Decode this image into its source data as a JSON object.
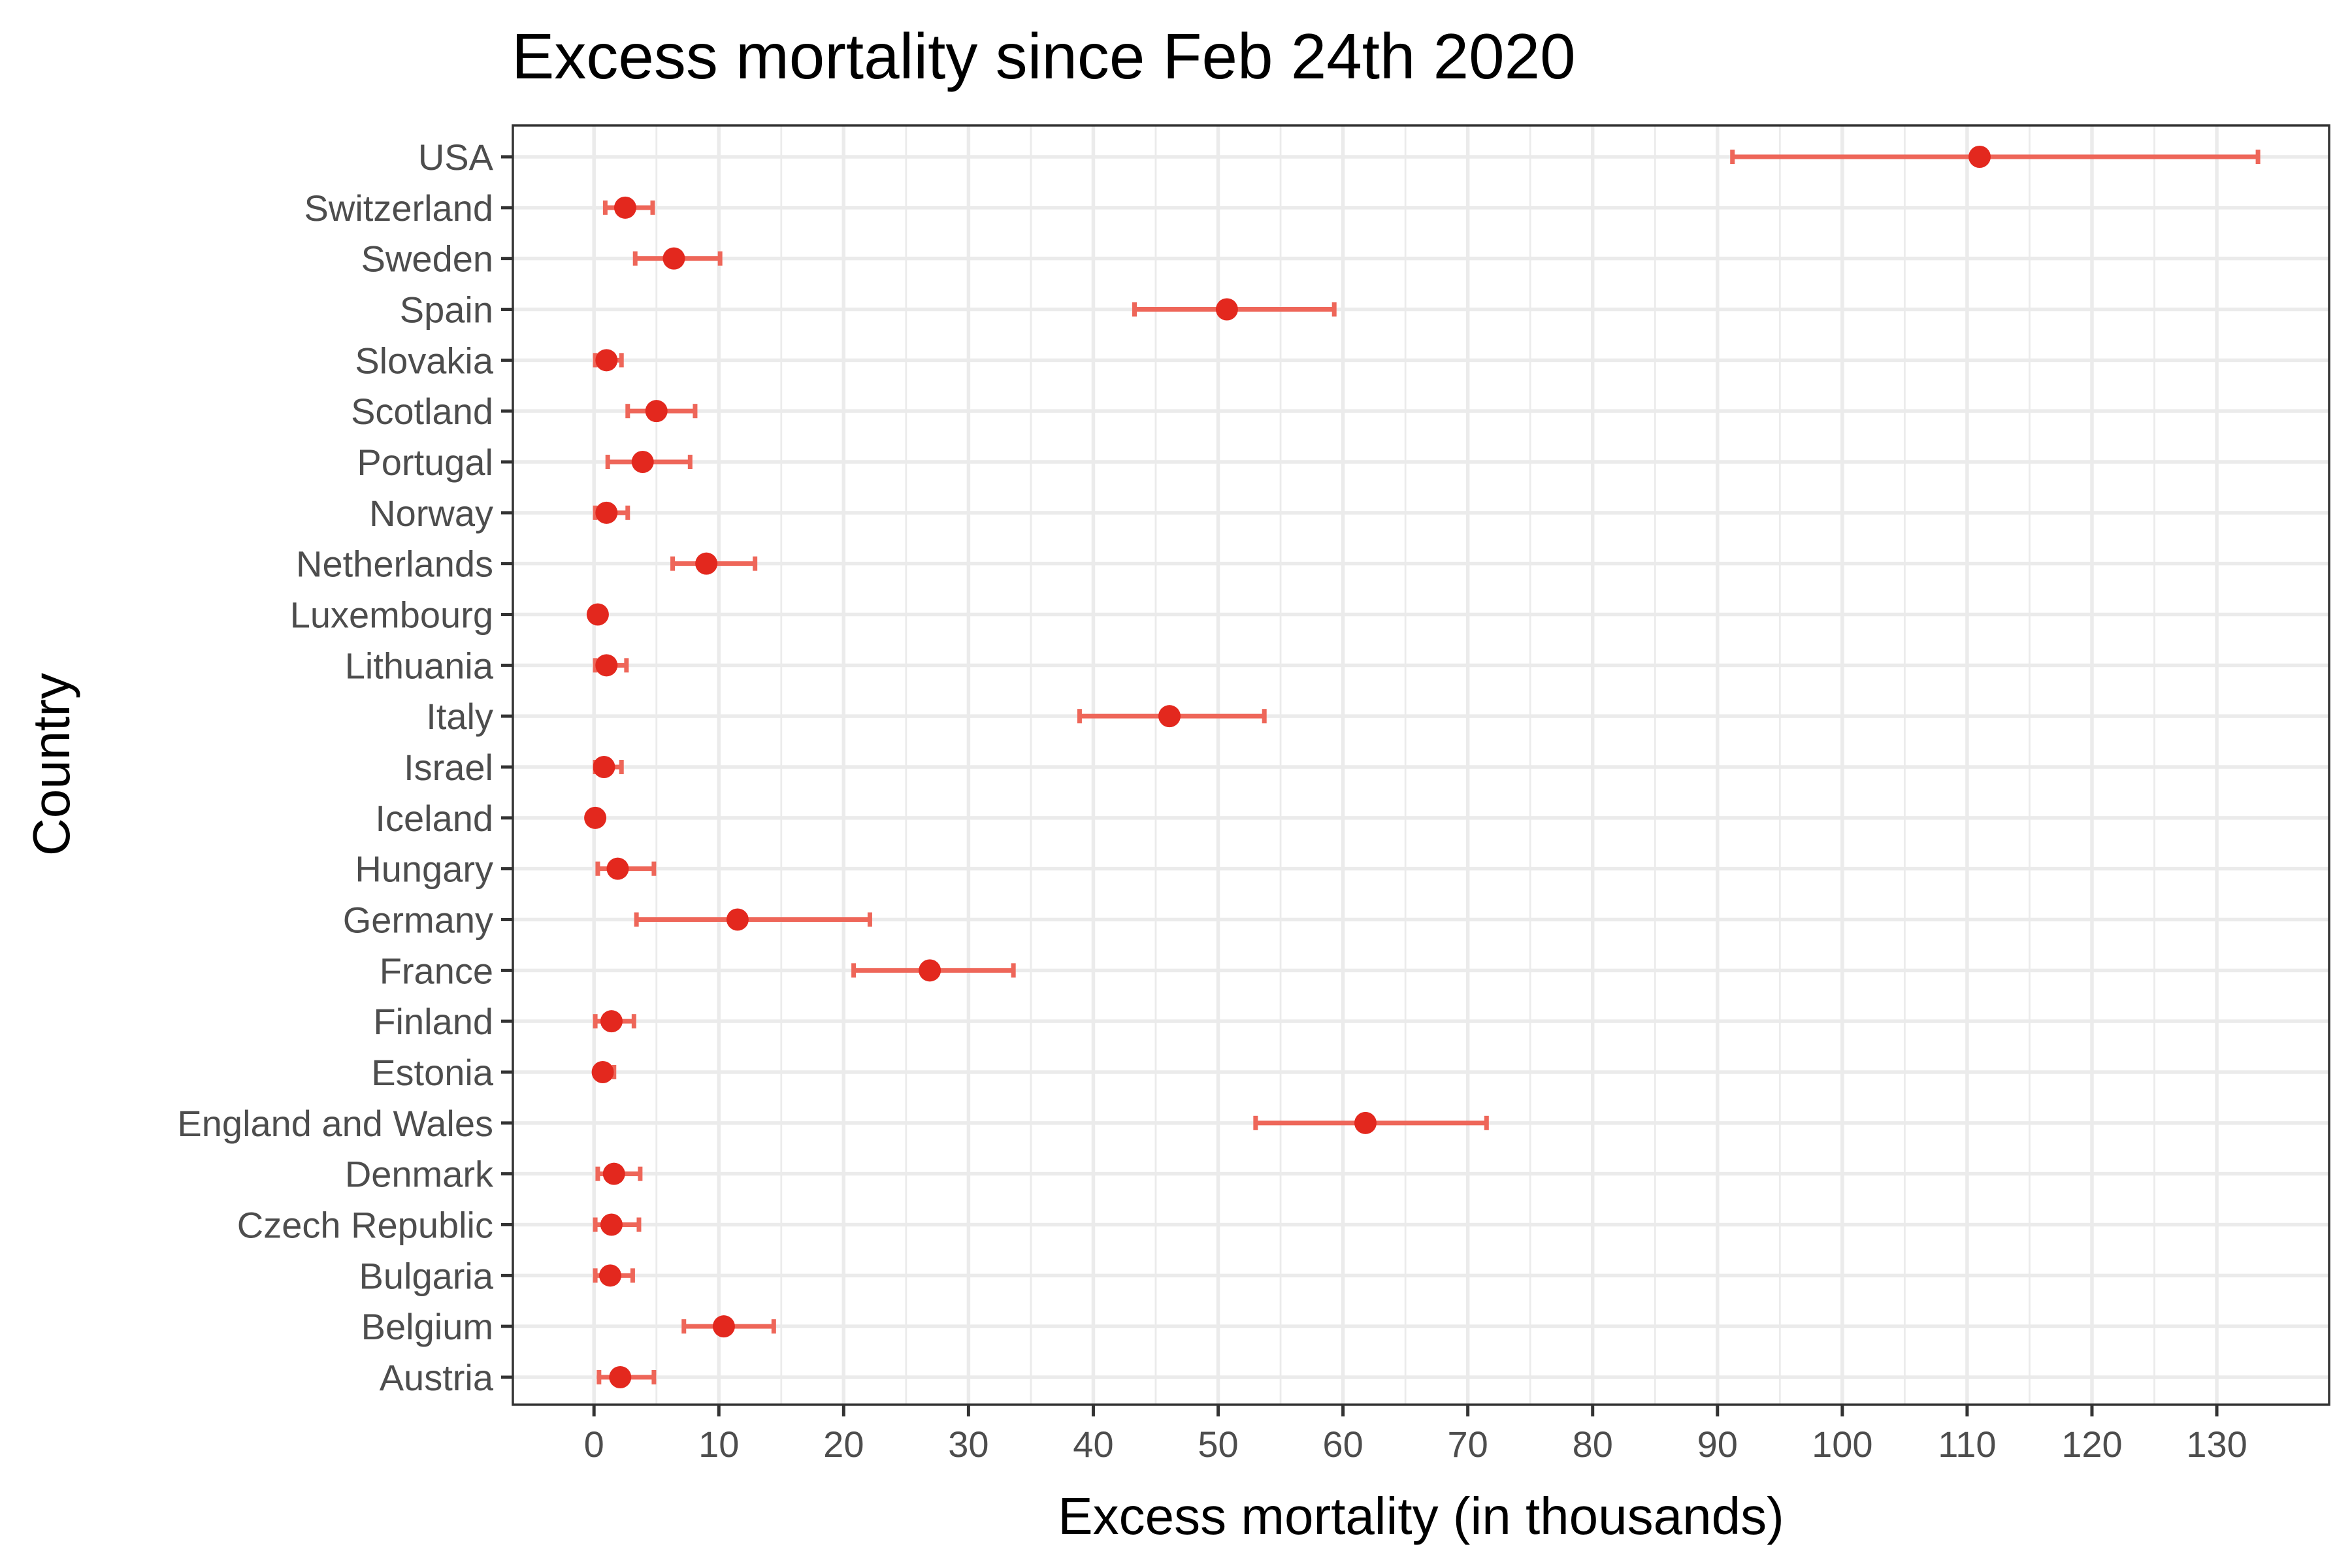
{
  "chart_data": {
    "type": "errorbar",
    "orientation": "horizontal",
    "title": "Excess mortality since Feb 24th 2020",
    "xlabel": "Excess mortality (in thousands)",
    "ylabel": "Country",
    "xlim": [
      -6.5,
      139
    ],
    "xticks": [
      0,
      10,
      20,
      30,
      40,
      50,
      60,
      70,
      80,
      90,
      100,
      110,
      120,
      130
    ],
    "grid": true,
    "point_color": "#e3281e",
    "bar_color": "#ee6659",
    "categories": [
      "USA",
      "Switzerland",
      "Sweden",
      "Spain",
      "Slovakia",
      "Scotland",
      "Portugal",
      "Norway",
      "Netherlands",
      "Luxembourg",
      "Lithuania",
      "Italy",
      "Israel",
      "Iceland",
      "Hungary",
      "Germany",
      "France",
      "Finland",
      "Estonia",
      "England and Wales",
      "Denmark",
      "Czech Republic",
      "Bulgaria",
      "Belgium",
      "Austria"
    ],
    "values": [
      111.0,
      2.5,
      6.4,
      50.7,
      1.0,
      5.0,
      3.9,
      1.0,
      9.0,
      0.3,
      1.0,
      46.1,
      0.8,
      0.1,
      1.9,
      11.5,
      26.9,
      1.4,
      0.7,
      61.8,
      1.6,
      1.4,
      1.3,
      10.4,
      2.1
    ],
    "lower": [
      91.2,
      0.9,
      3.3,
      43.3,
      0.1,
      2.7,
      1.1,
      0.1,
      6.3,
      0.3,
      0.1,
      38.9,
      0.1,
      0.1,
      0.3,
      3.4,
      20.8,
      0.1,
      0.2,
      53.0,
      0.3,
      0.1,
      0.1,
      7.2,
      0.4
    ],
    "upper": [
      133.3,
      4.7,
      10.1,
      59.3,
      2.2,
      8.1,
      7.7,
      2.7,
      12.9,
      0.3,
      2.6,
      53.7,
      2.2,
      0.1,
      4.8,
      22.1,
      33.6,
      3.2,
      1.6,
      71.5,
      3.7,
      3.6,
      3.1,
      14.4,
      4.8
    ]
  }
}
